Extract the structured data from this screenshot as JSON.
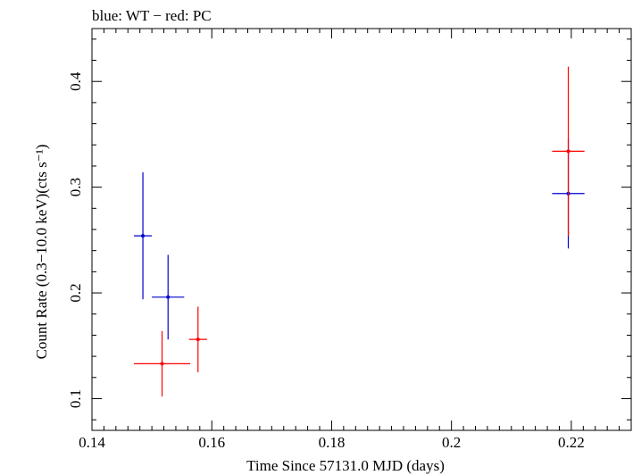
{
  "chart_data": {
    "type": "scatter",
    "title": "blue: WT − red: PC",
    "xlabel": "Time Since 57131.0 MJD (days)",
    "ylabel": "Count Rate (0.3−10.0 keV)(cts s⁻¹)",
    "xlim": [
      0.14,
      0.23
    ],
    "ylim": [
      0.07,
      0.45
    ],
    "x_ticks": [
      0.14,
      0.16,
      0.18,
      0.2,
      0.22
    ],
    "x_tick_labels": [
      "0.14",
      "0.16",
      "0.18",
      "0.2",
      "0.22"
    ],
    "y_ticks": [
      0.1,
      0.2,
      0.3,
      0.4
    ],
    "y_tick_labels": [
      "0.1",
      "0.2",
      "0.3",
      "0.4"
    ],
    "grid": false,
    "series": [
      {
        "name": "WT",
        "color": "#0000cc",
        "points": [
          {
            "x": 0.1485,
            "y": 0.254,
            "xerr": 0.0015,
            "yerr_lo": 0.06,
            "yerr_hi": 0.06
          },
          {
            "x": 0.1527,
            "y": 0.196,
            "xerr": 0.0027,
            "yerr_lo": 0.04,
            "yerr_hi": 0.04
          },
          {
            "x": 0.2195,
            "y": 0.294,
            "xerr": 0.0027,
            "yerr_lo": 0.052,
            "yerr_hi": 0.052
          }
        ]
      },
      {
        "name": "PC",
        "color": "#ff0000",
        "points": [
          {
            "x": 0.1517,
            "y": 0.133,
            "xerr": 0.0047,
            "yerr_lo": 0.031,
            "yerr_hi": 0.031
          },
          {
            "x": 0.1577,
            "y": 0.156,
            "xerr": 0.0015,
            "yerr_lo": 0.031,
            "yerr_hi": 0.031
          },
          {
            "x": 0.2195,
            "y": 0.334,
            "xerr": 0.0027,
            "yerr_lo": 0.08,
            "yerr_hi": 0.08
          }
        ]
      }
    ]
  }
}
